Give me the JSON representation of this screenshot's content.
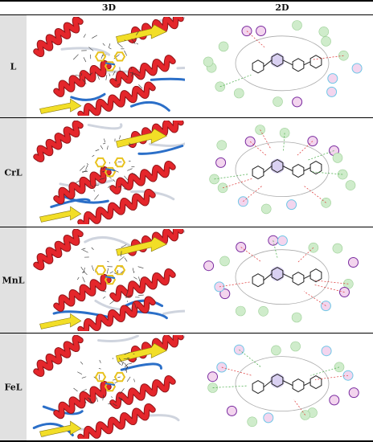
{
  "header": {
    "col_3d": "3D",
    "col_2d": "2D"
  },
  "rows": [
    {
      "label": "L"
    },
    {
      "label": "CrL"
    },
    {
      "label": "MnL"
    },
    {
      "label": "FeL"
    }
  ],
  "colors": {
    "helix": "#e4262b",
    "sheet": "#f2de27",
    "coil": "#cfd4de",
    "loop_blue": "#2b6fc8",
    "ligand": "#e8c21e",
    "label_bg": "#e1e1e1",
    "res_green": "#cfeccb",
    "res_pink": "#f3d5ee",
    "res_purple_ring": "#7a2ca0",
    "res_blue_ring": "#6fc7e6"
  }
}
